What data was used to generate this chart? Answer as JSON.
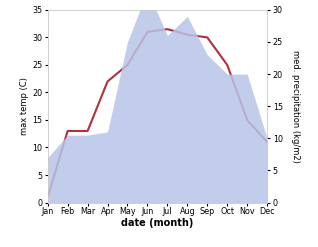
{
  "months": [
    "Jan",
    "Feb",
    "Mar",
    "Apr",
    "May",
    "Jun",
    "Jul",
    "Aug",
    "Sep",
    "Oct",
    "Nov",
    "Dec"
  ],
  "temperature": [
    1,
    13,
    13,
    22,
    25,
    31,
    31.5,
    30.5,
    30,
    25,
    15,
    11
  ],
  "precipitation": [
    7,
    10.5,
    10.5,
    11,
    25,
    33,
    26,
    29,
    23,
    20,
    20,
    10
  ],
  "temp_color": "#b03040",
  "precip_fill_color": "#b8c4e8",
  "temp_ylim": [
    0,
    35
  ],
  "precip_ylim": [
    0,
    30
  ],
  "temp_yticks": [
    0,
    5,
    10,
    15,
    20,
    25,
    30,
    35
  ],
  "precip_yticks": [
    0,
    5,
    10,
    15,
    20,
    25,
    30
  ],
  "ylabel_left": "max temp (C)",
  "ylabel_right": "med. precipitation (kg/m2)",
  "xlabel": "date (month)",
  "background_color": "#ffffff",
  "temp_linewidth": 1.5,
  "label_fontsize": 6.0,
  "tick_fontsize": 5.8,
  "xlabel_fontsize": 7.0
}
